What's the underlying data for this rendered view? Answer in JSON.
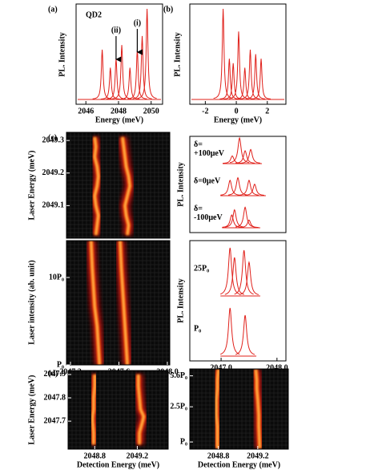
{
  "chart_data": [
    {
      "type": "spectrum",
      "panel": "(a)",
      "annotation": "QD2",
      "ylabel": "PL. Intensity",
      "xlabel": "Energy (meV)",
      "xlim": [
        2045.4,
        2050.7
      ],
      "xticks": [
        2046,
        2048,
        2050
      ],
      "color": "#e0201a",
      "x": [
        2047.0,
        2047.5,
        2047.85,
        2048.2,
        2048.7,
        2049.15,
        2049.45,
        2049.75
      ],
      "values": [
        0.55,
        0.35,
        0.45,
        0.6,
        0.35,
        0.55,
        0.7,
        1.0
      ],
      "arrows": [
        {
          "label": "(i)",
          "x": 2049.15
        },
        {
          "label": "(ii)",
          "x": 2047.85
        }
      ]
    },
    {
      "type": "spectrum",
      "panel": "(b)",
      "ylabel": "PL. Intensity",
      "xlabel": "Energy (meV)",
      "xlim": [
        -3.0,
        3.2
      ],
      "xticks": [
        -2,
        0,
        2
      ],
      "color": "#e0201a",
      "x": [
        -0.85,
        -0.45,
        -0.2,
        0.15,
        0.55,
        0.9,
        1.25,
        1.6
      ],
      "values": [
        1.0,
        0.45,
        0.4,
        0.75,
        0.35,
        0.55,
        0.5,
        0.45
      ]
    },
    {
      "type": "heatmap",
      "panel": "(c)",
      "ylabel": "Laser Energy (meV)",
      "xlim": [
        2047.167,
        2048.02
      ],
      "ylim": [
        2049.0,
        2049.325
      ],
      "yticks": [
        2049.1,
        2049.2,
        2049.3
      ],
      "y": [
        2049.01,
        2049.04,
        2049.07,
        2049.1,
        2049.13,
        2049.16,
        2049.19,
        2049.22,
        2049.25,
        2049.28,
        2049.31
      ],
      "ridges": [
        [
          2047.41,
          2047.42,
          2047.43,
          2047.41,
          2047.4,
          2047.42,
          2047.43,
          2047.42,
          2047.4,
          2047.41,
          2047.4
        ],
        [
          2047.67,
          2047.68,
          2047.66,
          2047.65,
          2047.67,
          2047.69,
          2047.68,
          2047.66,
          2047.65,
          2047.64,
          2047.63
        ]
      ]
    },
    {
      "type": "heatmap",
      "ylabel": "Laser intensity (ab. unit)",
      "xlabel": "Detection Energy (meV)",
      "xlim": [
        2047.167,
        2048.02
      ],
      "xticks": [
        2047.2,
        2047.6,
        {
          "value": 2048,
          "label": "2048.0"
        }
      ],
      "ylim": [
        1,
        13.8
      ],
      "yticks": [
        {
          "value": 1,
          "label": "P₀"
        },
        {
          "value": 10,
          "label": "10P₀"
        }
      ],
      "y": [
        1,
        3,
        5,
        7,
        9,
        11,
        13.8
      ],
      "ridges": [
        [
          2047.44,
          2047.43,
          2047.42,
          2047.4,
          2047.39,
          2047.38,
          2047.37
        ],
        [
          2047.67,
          2047.66,
          2047.65,
          2047.64,
          2047.63,
          2047.62,
          2047.61
        ]
      ]
    },
    {
      "type": "stacked_spectra",
      "ylabel": "PL. Intensity",
      "xlim": [
        2046.44,
        2048.16
      ],
      "color": "#e0201a",
      "spectra": [
        {
          "label": [
            "δ=",
            "+100μeV"
          ],
          "x": [
            2047.2,
            2047.33,
            2047.43,
            2047.53
          ],
          "values": [
            0.3,
            1.0,
            0.5,
            0.55
          ]
        },
        {
          "label": [
            "δ=0μeV"
          ],
          "x": [
            2047.16,
            2047.3,
            2047.5,
            2047.6
          ],
          "values": [
            0.6,
            0.7,
            0.6,
            0.45
          ]
        },
        {
          "label": [
            "δ=",
            "-100μeV"
          ],
          "x": [
            2047.19,
            2047.24,
            2047.43,
            2047.5
          ],
          "values": [
            0.5,
            0.7,
            0.8,
            0.3
          ]
        }
      ]
    },
    {
      "type": "stacked_spectra",
      "ylabel": "PL. Intensity",
      "xlim": [
        2046.44,
        2048.16
      ],
      "color": "#e0201a",
      "xticks": [
        {
          "value": 2047,
          "label": "2047.0"
        },
        {
          "value": 2048,
          "label": "2048.0"
        }
      ],
      "spectra": [
        {
          "label": [
            "25P₀"
          ],
          "x": [
            2047.16,
            2047.24,
            2047.41,
            2047.5
          ],
          "values": [
            1.0,
            0.8,
            0.95,
            0.7
          ]
        },
        {
          "label": [
            "P₀"
          ],
          "x": [
            2047.16,
            2047.43
          ],
          "values": [
            1.0,
            0.85
          ]
        }
      ]
    },
    {
      "type": "heatmap",
      "panel": "(d)",
      "ylabel": "Laser Energy (meV)",
      "xlabel": "Detection Energy (meV)",
      "xlim": [
        2048.55,
        2049.49
      ],
      "xticks": [
        2048.8,
        2049.2
      ],
      "ylim": [
        2047.58,
        2047.917
      ],
      "yticks": [
        2047.7,
        2047.8,
        2047.9
      ],
      "y": [
        2047.6,
        2047.65,
        2047.7,
        2047.72,
        2047.75,
        2047.8,
        2047.85,
        2047.9
      ],
      "ridges": [
        [
          2048.79,
          2048.79,
          2048.78,
          2048.78,
          2048.79,
          2048.79,
          2048.8,
          2048.8
        ],
        [
          2049.22,
          2049.22,
          2049.25,
          2049.26,
          2049.23,
          2049.22,
          2049.21,
          2049.21
        ]
      ]
    },
    {
      "type": "heatmap",
      "xlabel": "Detection Energy (meV)",
      "log": true,
      "xlim": [
        2048.51,
        2049.51
      ],
      "xticks": [
        2048.8,
        2049.2
      ],
      "ylim": [
        0.83,
        6.7
      ],
      "yticks": [
        {
          "value": 1,
          "label": "P₀"
        },
        {
          "value": 2.5,
          "label": "2.5P₀"
        },
        {
          "value": 5.6,
          "label": "5.6P₀"
        }
      ],
      "y": [
        0.85,
        1.5,
        2,
        3,
        4,
        5,
        6.6
      ],
      "ridges": [
        [
          2048.79,
          2048.79,
          2048.78,
          2048.78,
          2048.79,
          2048.79,
          2048.8
        ],
        [
          2049.22,
          2049.21,
          2049.21,
          2049.2,
          2049.19,
          2049.19,
          2049.18
        ]
      ]
    }
  ]
}
